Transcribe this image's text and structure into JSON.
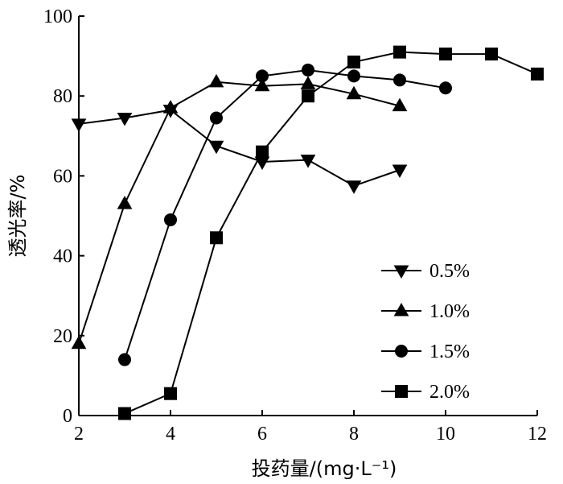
{
  "chart_data": {
    "type": "line",
    "xlabel": "投药量/(mg·L⁻¹)",
    "ylabel": "透光率/%",
    "xlim": [
      2,
      12
    ],
    "ylim": [
      0,
      100
    ],
    "xticks": [
      "2",
      "4",
      "6",
      "8",
      "10",
      "12"
    ],
    "yticks": [
      "0",
      "20",
      "40",
      "60",
      "80",
      "100"
    ],
    "grid": false,
    "legend_position": "bottom-right",
    "series": [
      {
        "name": "0.5%",
        "marker": "triangle-down",
        "points": [
          [
            2,
            73.0
          ],
          [
            3,
            74.5
          ],
          [
            4,
            76.5
          ],
          [
            5,
            67.5
          ],
          [
            6,
            63.5
          ],
          [
            7,
            64.0
          ],
          [
            8,
            57.5
          ],
          [
            9,
            61.5
          ]
        ]
      },
      {
        "name": "1.0%",
        "marker": "triangle-up",
        "points": [
          [
            2,
            18.0
          ],
          [
            3,
            53.0
          ],
          [
            4,
            77.0
          ],
          [
            5,
            83.5
          ],
          [
            6,
            82.5
          ],
          [
            7,
            83.0
          ],
          [
            8,
            80.5
          ],
          [
            9,
            77.5
          ]
        ]
      },
      {
        "name": "1.5%",
        "marker": "circle",
        "points": [
          [
            3,
            14.0
          ],
          [
            4,
            49.0
          ],
          [
            5,
            74.5
          ],
          [
            6,
            85.0
          ],
          [
            7,
            86.5
          ],
          [
            8,
            85.0
          ],
          [
            9,
            84.0
          ],
          [
            10,
            82.0
          ]
        ]
      },
      {
        "name": "2.0%",
        "marker": "square",
        "points": [
          [
            3,
            0.5
          ],
          [
            4,
            5.5
          ],
          [
            5,
            44.5
          ],
          [
            6,
            66.0
          ],
          [
            7,
            80.0
          ],
          [
            8,
            88.5
          ],
          [
            9,
            91.0
          ],
          [
            10,
            90.5
          ],
          [
            11,
            90.5
          ],
          [
            12,
            85.5
          ]
        ]
      }
    ]
  }
}
